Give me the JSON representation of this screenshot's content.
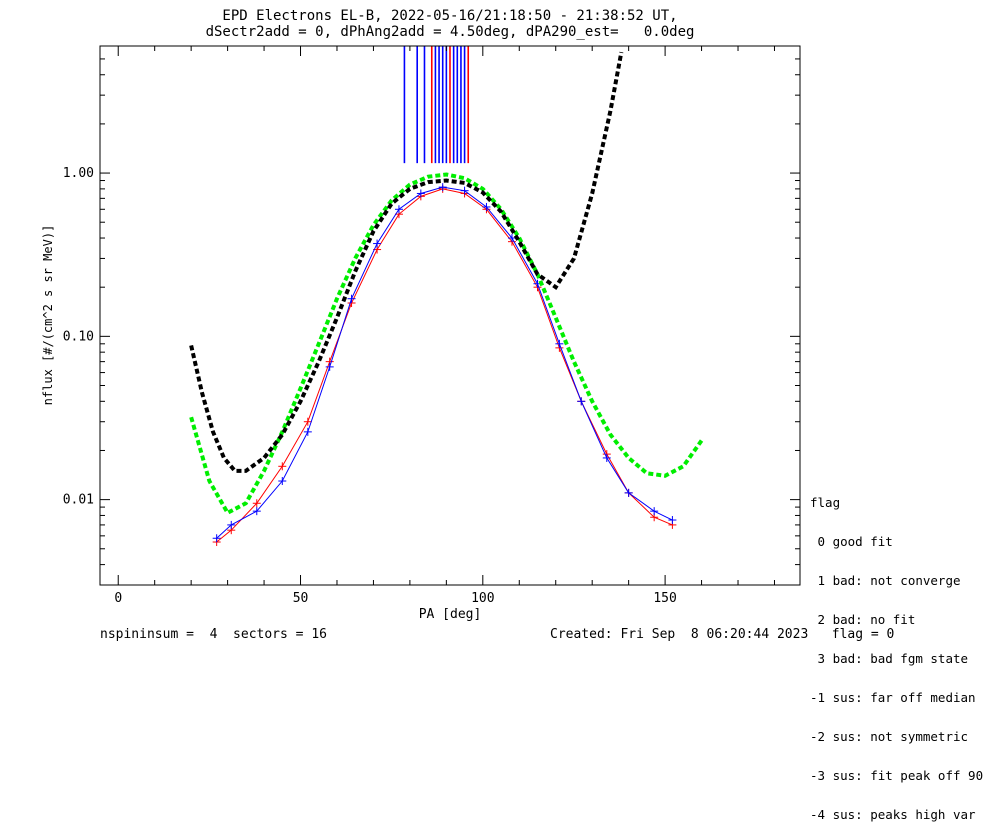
{
  "chart_data": {
    "type": "line",
    "title_line1": "EPD Electrons EL-B, 2022-05-16/21:18:50 - 21:38:52 UT,",
    "title_line2": "dSectr2add = 0, dPhAng2add = 4.50deg, dPA290_est=   0.0deg",
    "xlabel": "PA [deg]",
    "ylabel": "nflux [#/(cm^2 s sr MeV)]",
    "xlim": [
      -5,
      187
    ],
    "ylim": [
      0.003,
      6.0
    ],
    "yscale": "log",
    "x_ticks": [
      "0",
      "50",
      "100",
      "150"
    ],
    "y_ticks": [
      "0.01",
      "0.10",
      "1.00"
    ],
    "series": [
      {
        "name": "",
        "color": "#ff0000",
        "style": "lines-plus",
        "x": [
          27,
          31,
          38,
          45,
          52,
          58,
          64,
          71,
          77,
          83,
          89,
          95,
          101,
          108,
          115,
          121,
          127,
          134,
          140,
          147,
          152
        ],
        "y": [
          0.0055,
          0.0065,
          0.0095,
          0.016,
          0.03,
          0.07,
          0.16,
          0.34,
          0.56,
          0.72,
          0.8,
          0.75,
          0.6,
          0.38,
          0.2,
          0.085,
          0.04,
          0.019,
          0.011,
          0.0078,
          0.007
        ]
      },
      {
        "name": "",
        "color": "#0000ff",
        "style": "lines-plus",
        "x": [
          27,
          31,
          38,
          45,
          52,
          58,
          64,
          71,
          77,
          83,
          89,
          95,
          101,
          108,
          115,
          121,
          127,
          134,
          140,
          147,
          152
        ],
        "y": [
          0.0058,
          0.007,
          0.0085,
          0.013,
          0.026,
          0.065,
          0.17,
          0.37,
          0.6,
          0.75,
          0.82,
          0.78,
          0.62,
          0.4,
          0.21,
          0.09,
          0.04,
          0.018,
          0.011,
          0.0085,
          0.0075
        ]
      },
      {
        "name": "",
        "color": "#00ee00",
        "style": "dashed-fit",
        "x": [
          20,
          25,
          30,
          35,
          40,
          45,
          50,
          55,
          60,
          65,
          70,
          75,
          80,
          85,
          90,
          95,
          100,
          105,
          110,
          115,
          120,
          125,
          130,
          135,
          140,
          145,
          150,
          155,
          160
        ],
        "y": [
          0.032,
          0.013,
          0.0083,
          0.0095,
          0.015,
          0.026,
          0.048,
          0.09,
          0.17,
          0.3,
          0.48,
          0.68,
          0.85,
          0.95,
          0.98,
          0.93,
          0.8,
          0.6,
          0.4,
          0.24,
          0.13,
          0.07,
          0.04,
          0.025,
          0.018,
          0.0145,
          0.014,
          0.016,
          0.023
        ]
      },
      {
        "name": "",
        "color": "#000000",
        "style": "dashed-fit",
        "x": [
          20,
          23,
          26,
          29,
          32,
          35,
          40,
          45,
          50,
          55,
          60,
          65,
          70,
          75,
          80,
          85,
          90,
          95,
          100,
          105,
          110,
          115,
          120,
          125,
          130,
          135,
          138
        ],
        "y": [
          0.088,
          0.045,
          0.026,
          0.018,
          0.015,
          0.015,
          0.018,
          0.025,
          0.04,
          0.07,
          0.13,
          0.25,
          0.44,
          0.65,
          0.8,
          0.88,
          0.9,
          0.87,
          0.76,
          0.58,
          0.38,
          0.24,
          0.2,
          0.3,
          0.75,
          2.4,
          5.5
        ]
      }
    ],
    "vertical_markers": {
      "color": "#0000ff",
      "color2": "#ff0000",
      "x": [
        78.5,
        82,
        84,
        86,
        87,
        88,
        89,
        90,
        91,
        92,
        93,
        94,
        95,
        96
      ]
    }
  },
  "legend": {
    "title": "flag",
    "items": [
      " 0 good fit",
      " 1 bad: not converge",
      " 2 bad: no fit",
      " 3 bad: bad fgm state",
      "-1 sus: far off median",
      "-2 sus: not symmetric",
      "-3 sus: fit peak off 90",
      "-4 sus: peaks high var"
    ]
  },
  "footer": {
    "left": "nspininsum =  4  sectors = 16",
    "right": "Created: Fri Sep  8 06:20:44 2023   flag = 0"
  }
}
